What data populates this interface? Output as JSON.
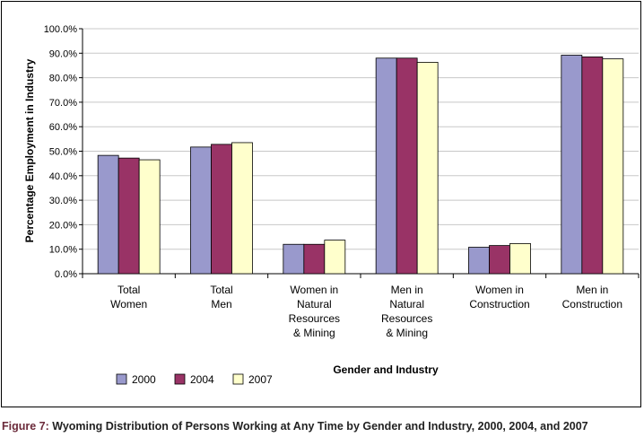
{
  "chart_data": {
    "type": "bar",
    "categories": [
      [
        "Total",
        "Women"
      ],
      [
        "Total",
        "Men"
      ],
      [
        "Women in",
        "Natural",
        "Resources",
        "& Mining"
      ],
      [
        "Men in",
        "Natural",
        "Resources",
        "& Mining"
      ],
      [
        "Women in",
        "Construction"
      ],
      [
        "Men in",
        "Construction"
      ]
    ],
    "series": [
      {
        "name": "2000",
        "color": "#9999cc",
        "values": [
          48.3,
          51.7,
          12.0,
          88.0,
          10.8,
          89.2
        ]
      },
      {
        "name": "2004",
        "color": "#993366",
        "values": [
          47.2,
          52.8,
          12.0,
          88.0,
          11.5,
          88.5
        ]
      },
      {
        "name": "2007",
        "color": "#ffffcc",
        "values": [
          46.5,
          53.5,
          13.7,
          86.3,
          12.3,
          87.7
        ]
      }
    ],
    "xlabel": "Gender and Industry",
    "ylabel": "Percentage Employment in Industry",
    "ylim": [
      0,
      100
    ],
    "ytick_step": 10,
    "ytick_labels": [
      "0.0%",
      "10.0%",
      "20.0%",
      "30.0%",
      "40.0%",
      "50.0%",
      "60.0%",
      "70.0%",
      "80.0%",
      "90.0%",
      "100.0%"
    ],
    "grid": true,
    "legend_position": "bottom-left"
  },
  "caption": {
    "lead": "Figure 7:",
    "text": " Wyoming Distribution of Persons Working at Any Time by Gender and Industry, 2000, 2004, and 2007"
  }
}
